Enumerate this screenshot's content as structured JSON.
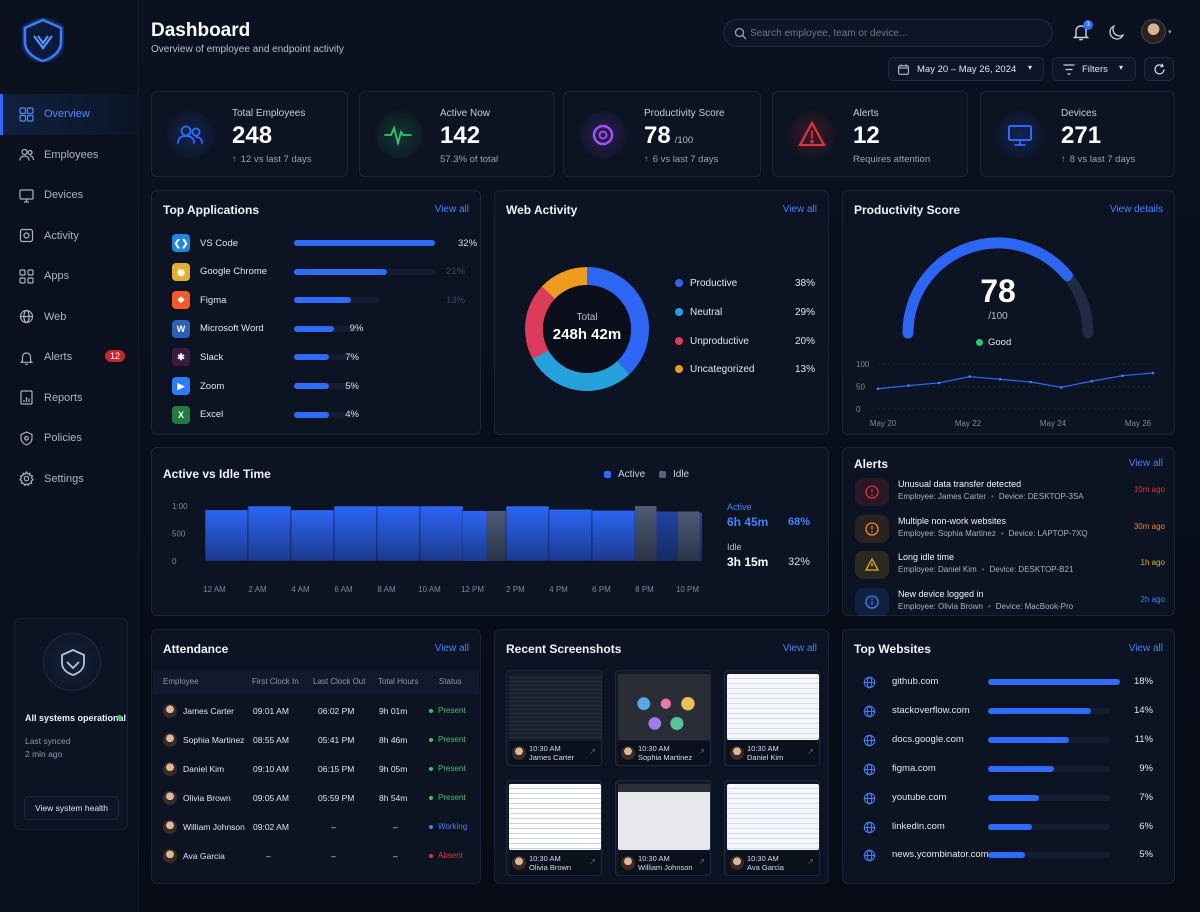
{
  "header": {
    "title": "Dashboard",
    "subtitle": "Overview of employee and endpoint activity",
    "search_placeholder": "Search employee, team or device...",
    "notification_count": "3",
    "date_range": "May 20 – May 26, 2024",
    "filters_label": "Filters"
  },
  "sidebar": {
    "items": [
      {
        "label": "Overview",
        "icon": "grid-icon",
        "active": true
      },
      {
        "label": "Employees",
        "icon": "users-icon"
      },
      {
        "label": "Devices",
        "icon": "monitor-icon"
      },
      {
        "label": "Activity",
        "icon": "activity-icon"
      },
      {
        "label": "Apps",
        "icon": "apps-icon"
      },
      {
        "label": "Web",
        "icon": "globe-icon"
      },
      {
        "label": "Alerts",
        "icon": "bell-icon",
        "badge": "12"
      },
      {
        "label": "Reports",
        "icon": "report-icon"
      },
      {
        "label": "Policies",
        "icon": "shield-icon"
      },
      {
        "label": "Settings",
        "icon": "gear-icon"
      }
    ],
    "system": {
      "status": "All systems operational",
      "synced_label": "Last synced",
      "synced_value": "2 min ago",
      "button": "View system health"
    }
  },
  "kpis": [
    {
      "label": "Total Employees",
      "value": "248",
      "unit": "",
      "sub": "12 vs last 7 days",
      "trend": "up",
      "color": "#2f6bff",
      "icon": "users-icon"
    },
    {
      "label": "Active Now",
      "value": "142",
      "unit": "",
      "sub": "57.3% of total",
      "trend": "",
      "color": "#2fc76a",
      "icon": "pulse-icon"
    },
    {
      "label": "Productivity Score",
      "value": "78",
      "unit": "/100",
      "sub": "6 vs last 7 days",
      "trend": "up",
      "color": "#a350ff",
      "icon": "target-icon"
    },
    {
      "label": "Alerts",
      "value": "12",
      "unit": "",
      "sub": "Requires attention",
      "trend": "",
      "color": "#e0323c",
      "icon": "warning-icon"
    },
    {
      "label": "Devices",
      "value": "271",
      "unit": "",
      "sub": "8 vs last 7 days",
      "trend": "up",
      "color": "#2f6bff",
      "icon": "monitor-icon"
    }
  ],
  "top_apps": {
    "title": "Top Applications",
    "link": "View all",
    "items": [
      {
        "name": "VS Code",
        "pct": "32%",
        "value": 0.32,
        "icon": "vscode-icon",
        "color": "#1f86e0"
      },
      {
        "name": "Google Chrome",
        "pct": "21%",
        "value": 0.21,
        "icon": "chrome-icon",
        "color": "#e2b030"
      },
      {
        "name": "Figma",
        "pct": "13%",
        "value": 0.13,
        "icon": "figma-icon",
        "color": "#f25a2a"
      },
      {
        "name": "Microsoft Word",
        "pct": "9%",
        "value": 0.09,
        "icon": "word-icon",
        "color": "#2b5fb8"
      },
      {
        "name": "Slack",
        "pct": "7%",
        "value": 0.07,
        "icon": "slack-icon",
        "color": "#3c1a3e"
      },
      {
        "name": "Zoom",
        "pct": "5%",
        "value": 0.05,
        "icon": "zoom-icon",
        "color": "#2d7bff"
      },
      {
        "name": "Excel",
        "pct": "4%",
        "value": 0.04,
        "icon": "excel-icon",
        "color": "#1f7a43"
      }
    ]
  },
  "web_activity": {
    "title": "Web Activity",
    "link": "View all",
    "total_label": "Total",
    "total_value": "248h 42m",
    "segments": [
      {
        "name": "Productive",
        "pct": "38%",
        "value": 38,
        "color": "#2d66f5"
      },
      {
        "name": "Neutral",
        "pct": "29%",
        "value": 29,
        "color": "#25a2db"
      },
      {
        "name": "Unproductive",
        "pct": "20%",
        "value": 20,
        "color": "#dd3b5c"
      },
      {
        "name": "Uncategorized",
        "pct": "13%",
        "value": 13,
        "color": "#ef9b1e"
      }
    ]
  },
  "productivity": {
    "title": "Productivity Score",
    "link": "View details",
    "score": "78",
    "max": "/100",
    "score_value": 78,
    "status": "Good",
    "y_ticks": [
      "100",
      "50",
      "0"
    ],
    "x_labels": [
      "May 20",
      "May 22",
      "May 24",
      "May 26"
    ],
    "trend": [
      45,
      52,
      58,
      72,
      66,
      60,
      48,
      62,
      74,
      80
    ]
  },
  "active_idle": {
    "title": "Active vs Idle Time",
    "legend_active": "Active",
    "legend_idle": "Idle",
    "y_ticks": [
      "1:00",
      "500",
      "0"
    ],
    "x_labels": [
      "12 AM",
      "2 AM",
      "4 AM",
      "6 AM",
      "8 AM",
      "10 AM",
      "12 PM",
      "2 PM",
      "4 PM",
      "6 PM",
      "8 PM",
      "10 PM"
    ],
    "bars_active": [
      0.93,
      1.0,
      0.93,
      1.0,
      1.0,
      1.0,
      0.91,
      1.0,
      0.94,
      0.92,
      0.9,
      0.88
    ],
    "bars_idle": [
      0,
      0,
      0,
      0,
      0,
      0,
      0.91,
      0,
      0,
      0,
      1.0,
      0.9
    ],
    "active_label": "Active",
    "active_time": "6h 45m",
    "active_pct": "68%",
    "idle_label": "Idle",
    "idle_time": "3h 15m",
    "idle_pct": "32%"
  },
  "alerts": {
    "title": "Alerts",
    "link": "View all",
    "items": [
      {
        "title": "Unusual data transfer detected",
        "employee": "Employee: James Carter",
        "device": "Device: DESKTOP-3SA",
        "time": "10m ago",
        "color": "#e0323c",
        "icon": "alert-circle-icon"
      },
      {
        "title": "Multiple non-work websites",
        "employee": "Employee: Sophia Martinez",
        "device": "Device: LAPTOP-7XQ",
        "time": "30m ago",
        "color": "#ee8a1b",
        "icon": "alert-circle-icon"
      },
      {
        "title": "Long idle time",
        "employee": "Employee: Daniel Kim",
        "device": "Device: DESKTOP-B21",
        "time": "1h ago",
        "color": "#e6b21f",
        "icon": "warning-icon"
      },
      {
        "title": "New device logged in",
        "employee": "Employee: Olivia Brown",
        "device": "Device: MacBook-Pro",
        "time": "2h ago",
        "color": "#3f82ff",
        "icon": "info-icon"
      }
    ]
  },
  "attendance": {
    "title": "Attendance",
    "link": "View all",
    "columns": [
      "Employee",
      "First Clock In",
      "Last Clock Out",
      "Total Hours",
      "Status"
    ],
    "rows": [
      {
        "name": "James Carter",
        "in": "09:01 AM",
        "out": "06:02 PM",
        "hours": "9h 01m",
        "status": "Present",
        "color": "#2fc76a"
      },
      {
        "name": "Sophia Martinez",
        "in": "08:55 AM",
        "out": "05:41 PM",
        "hours": "8h 46m",
        "status": "Present",
        "color": "#2fc76a"
      },
      {
        "name": "Daniel Kim",
        "in": "09:10 AM",
        "out": "06:15 PM",
        "hours": "9h 05m",
        "status": "Present",
        "color": "#2fc76a"
      },
      {
        "name": "Olivia Brown",
        "in": "09:05 AM",
        "out": "05:59 PM",
        "hours": "8h 54m",
        "status": "Present",
        "color": "#2fc76a"
      },
      {
        "name": "William Johnson",
        "in": "09:02 AM",
        "out": "–",
        "hours": "–",
        "status": "Working",
        "color": "#3f82ff"
      },
      {
        "name": "Ava Garcia",
        "in": "–",
        "out": "–",
        "hours": "–",
        "status": "Absent",
        "color": "#e0323c"
      }
    ]
  },
  "screenshots": {
    "title": "Recent Screenshots",
    "link": "View all",
    "items": [
      {
        "time": "10:30 AM",
        "name": "James Carter",
        "theme": "dark-code"
      },
      {
        "time": "10:30 AM",
        "name": "Sophia Martinez",
        "theme": "dark-design"
      },
      {
        "time": "10:30 AM",
        "name": "Daniel Kim",
        "theme": "light-sheet"
      },
      {
        "time": "10:30 AM",
        "name": "Olivia Brown",
        "theme": "light-doc"
      },
      {
        "time": "10:30 AM",
        "name": "William Johnson",
        "theme": "dark-web"
      },
      {
        "time": "10:30 AM",
        "name": "Ava Garcia",
        "theme": "light-sheet"
      }
    ]
  },
  "top_websites": {
    "title": "Top Websites",
    "link": "View all",
    "items": [
      {
        "domain": "github.com",
        "pct": "18%",
        "value": 0.18
      },
      {
        "domain": "stackoverflow.com",
        "pct": "14%",
        "value": 0.14
      },
      {
        "domain": "docs.google.com",
        "pct": "11%",
        "value": 0.11
      },
      {
        "domain": "figma.com",
        "pct": "9%",
        "value": 0.09
      },
      {
        "domain": "youtube.com",
        "pct": "7%",
        "value": 0.07
      },
      {
        "domain": "linkedin.com",
        "pct": "6%",
        "value": 0.06
      },
      {
        "domain": "news.ycombinator.com",
        "pct": "5%",
        "value": 0.05
      }
    ]
  }
}
